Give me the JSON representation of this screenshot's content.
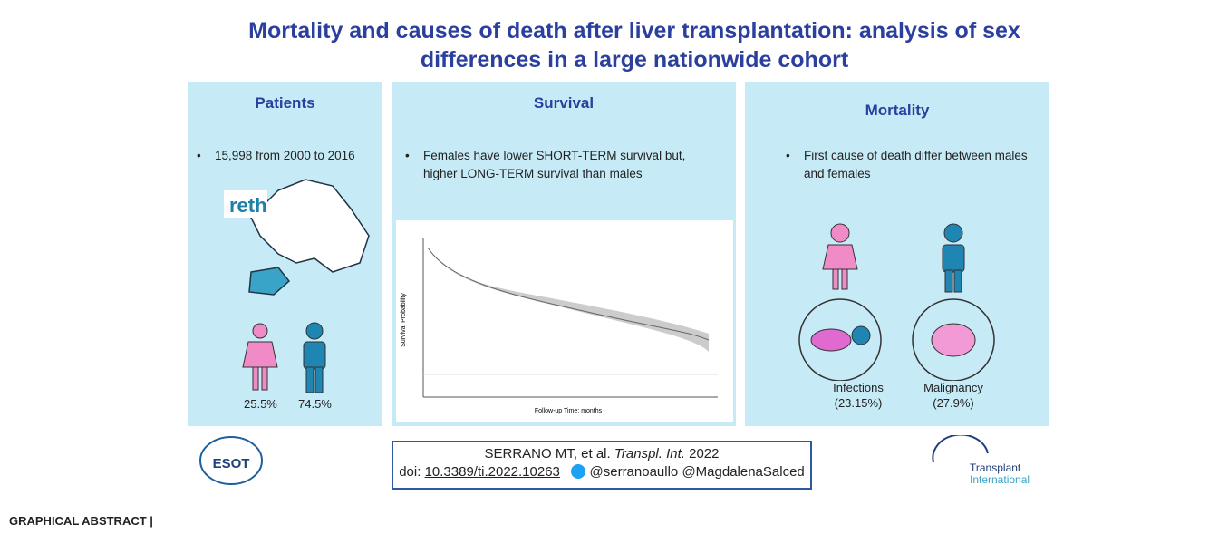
{
  "header": {
    "title": "Mortality and causes of death after liver transplantation: analysis of sex differences in a large nationwide cohort"
  },
  "panels": [
    {
      "heading": "Patients",
      "bullet": "15,998 from 2000 to 2016",
      "logo": "reth",
      "stats": [
        "25.5%",
        "74.5%"
      ]
    },
    {
      "heading": "Survival",
      "bullet": "Females have lower SHORT-TERM survival but, higher LONG-TERM survival than males",
      "chart": {
        "x_label": "Follow-up Time: months",
        "y_label": "Survival Probability"
      }
    },
    {
      "heading": "Mortality",
      "bullet": "First cause of death differ between males and females",
      "causes": [
        {
          "label": "Infections",
          "value": "(23.15%)"
        },
        {
          "label": "Malignancy",
          "value": "(27.9%)"
        }
      ]
    }
  ],
  "citation": {
    "authors": "SERRANO MT, et al.",
    "journal": "Transpl. Int.",
    "year": "2022",
    "doi_prefix": "doi:",
    "doi": "10.3389/ti.2022.10263",
    "twitter": "@serranoaullo @MagdalenaSalced"
  },
  "logos": {
    "left": "ESOT",
    "right_1": "Transplant",
    "right_2": "International"
  },
  "caption": "GRAPHICAL ABSTRACT |"
}
